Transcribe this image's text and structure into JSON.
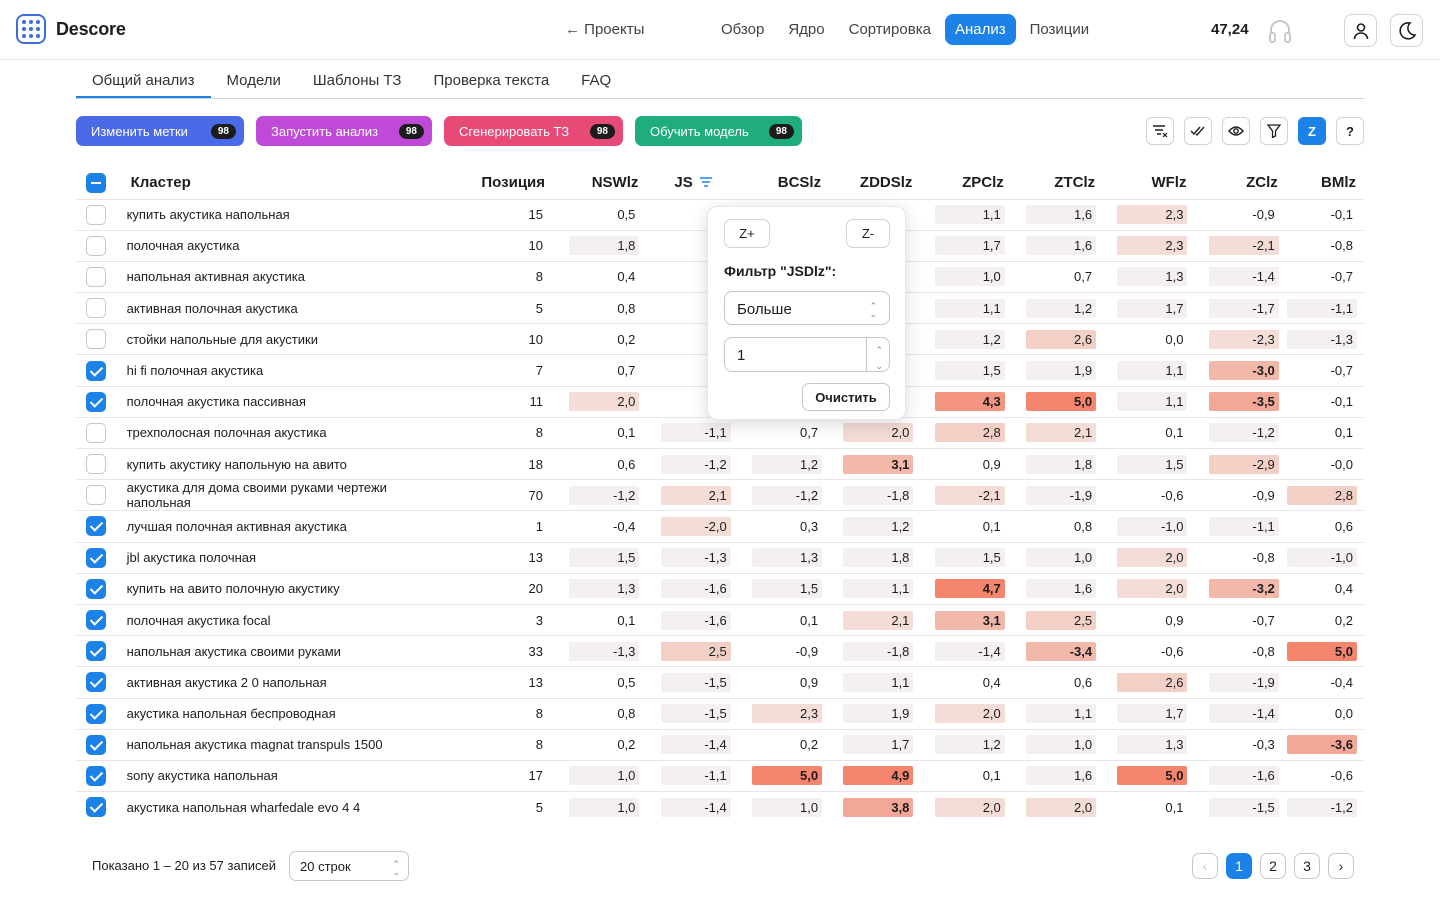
{
  "app": {
    "name": "Descore"
  },
  "header": {
    "back_label": "← Проекты",
    "nav": [
      "Обзор",
      "Ядро",
      "Сортировка",
      "Анализ",
      "Позиции"
    ],
    "active_nav": "Анализ",
    "score": "47,24"
  },
  "subtabs": [
    "Общий анализ",
    "Модели",
    "Шаблоны ТЗ",
    "Проверка текста",
    "FAQ"
  ],
  "actions": [
    {
      "label": "Изменить метки",
      "count": "98",
      "color": "#4a6ae8"
    },
    {
      "label": "Запустить анализ",
      "count": "98",
      "color": "#c04ad8"
    },
    {
      "label": "Сгенерировать ТЗ",
      "count": "98",
      "color": "#e84a78"
    },
    {
      "label": "Обучить модель",
      "count": "98",
      "color": "#1fad7e"
    }
  ],
  "toolbar_icons": [
    "clear-filter-icon",
    "check-all-icon",
    "eye-icon",
    "filter-icon",
    "z-toggle",
    "help-icon"
  ],
  "z_label": "Z",
  "help_label": "?",
  "table": {
    "headers": [
      "Кластер",
      "Позиция",
      "NSWlz",
      "JS",
      "BCSlz",
      "ZDDSlz",
      "ZPClz",
      "ZTClz",
      "WFlz",
      "ZClz",
      "BMlz"
    ],
    "rows": [
      {
        "checked": false,
        "kw": "купить акустика напольная",
        "pos": "15",
        "vals": [
          "0,5",
          "-",
          "",
          "",
          "1,1",
          "1,6",
          "2,3",
          "-0,9",
          "-0,1"
        ]
      },
      {
        "checked": false,
        "kw": "полочная акустика",
        "pos": "10",
        "vals": [
          "1,8",
          "-",
          "",
          "",
          "1,7",
          "1,6",
          "2,3",
          "-2,1",
          "-0,8"
        ]
      },
      {
        "checked": false,
        "kw": "напольная активная акустика",
        "pos": "8",
        "vals": [
          "0,4",
          "-",
          "",
          "",
          "1,0",
          "0,7",
          "1,3",
          "-1,4",
          "-0,7"
        ]
      },
      {
        "checked": false,
        "kw": "активная полочная акустика",
        "pos": "5",
        "vals": [
          "0,8",
          "-",
          "",
          "",
          "1,1",
          "1,2",
          "1,7",
          "-1,7",
          "-1,1"
        ]
      },
      {
        "checked": false,
        "kw": "стойки напольные для акустики",
        "pos": "10",
        "vals": [
          "0,2",
          "-",
          "",
          "",
          "1,2",
          "2,6",
          "0,0",
          "-2,3",
          "-1,3"
        ]
      },
      {
        "checked": true,
        "kw": "hi fi полочная акустика",
        "pos": "7",
        "vals": [
          "0,7",
          "-",
          "",
          "",
          "1,5",
          "1,9",
          "1,1",
          "-3,0",
          "-0,7"
        ]
      },
      {
        "checked": true,
        "kw": "полочная акустика пассивная",
        "pos": "11",
        "vals": [
          "2,0",
          "-",
          "",
          "",
          "4,3",
          "5,0",
          "1,1",
          "-3,5",
          "-0,1"
        ]
      },
      {
        "checked": false,
        "kw": "трехполосная полочная акустика",
        "pos": "8",
        "vals": [
          "0,1",
          "-1,1",
          "0,7",
          "2,0",
          "2,8",
          "2,1",
          "0,1",
          "-1,2",
          "0,1"
        ]
      },
      {
        "checked": false,
        "kw": "купить акустику напольную на авито",
        "pos": "18",
        "vals": [
          "0,6",
          "-1,2",
          "1,2",
          "3,1",
          "0,9",
          "1,8",
          "1,5",
          "-2,9",
          "-0,0"
        ]
      },
      {
        "checked": false,
        "kw": "акустика для дома своими руками чертежи напольная",
        "pos": "70",
        "vals": [
          "-1,2",
          "2,1",
          "-1,2",
          "-1,8",
          "-2,1",
          "-1,9",
          "-0,6",
          "-0,9",
          "2,8"
        ]
      },
      {
        "checked": true,
        "kw": "лучшая полочная активная акустика",
        "pos": "1",
        "vals": [
          "-0,4",
          "-2,0",
          "0,3",
          "1,2",
          "0,1",
          "0,8",
          "-1,0",
          "-1,1",
          "0,6"
        ]
      },
      {
        "checked": true,
        "kw": "jbl акустика полочная",
        "pos": "13",
        "vals": [
          "1,5",
          "-1,3",
          "1,3",
          "1,8",
          "1,5",
          "1,0",
          "2,0",
          "-0,8",
          "-1,0"
        ]
      },
      {
        "checked": true,
        "kw": "купить на авито полочную акустику",
        "pos": "20",
        "vals": [
          "1,3",
          "-1,6",
          "1,5",
          "1,1",
          "4,7",
          "1,6",
          "2,0",
          "-3,2",
          "0,4"
        ]
      },
      {
        "checked": true,
        "kw": "полочная акустика focal",
        "pos": "3",
        "vals": [
          "0,1",
          "-1,6",
          "0,1",
          "2,1",
          "3,1",
          "2,5",
          "0,9",
          "-0,7",
          "0,2"
        ]
      },
      {
        "checked": true,
        "kw": "напольная акустика своими руками",
        "pos": "33",
        "vals": [
          "-1,3",
          "2,5",
          "-0,9",
          "-1,8",
          "-1,4",
          "-3,4",
          "-0,6",
          "-0,8",
          "5,0"
        ]
      },
      {
        "checked": true,
        "kw": "активная акустика 2 0 напольная",
        "pos": "13",
        "vals": [
          "0,5",
          "-1,5",
          "0,9",
          "1,1",
          "0,4",
          "0,6",
          "2,6",
          "-1,9",
          "-0,4"
        ]
      },
      {
        "checked": true,
        "kw": "акустика напольная беспроводная",
        "pos": "8",
        "vals": [
          "0,8",
          "-1,5",
          "2,3",
          "1,9",
          "2,0",
          "1,1",
          "1,7",
          "-1,4",
          "0,0"
        ]
      },
      {
        "checked": true,
        "kw": "напольная акустика magnat transpuls 1500",
        "pos": "8",
        "vals": [
          "0,2",
          "-1,4",
          "0,2",
          "1,7",
          "1,2",
          "1,0",
          "1,3",
          "-0,3",
          "-3,6"
        ]
      },
      {
        "checked": true,
        "kw": "sony акустика напольная",
        "pos": "17",
        "vals": [
          "1,0",
          "-1,1",
          "5,0",
          "4,9",
          "0,1",
          "1,6",
          "5,0",
          "-1,6",
          "-0,6"
        ]
      },
      {
        "checked": true,
        "kw": "акустика напольная wharfedale evo 4 4",
        "pos": "5",
        "vals": [
          "1,0",
          "-1,4",
          "1,0",
          "3,8",
          "2,0",
          "2,0",
          "0,1",
          "-1,5",
          "-1,2"
        ]
      }
    ]
  },
  "popover": {
    "zplus": "Z+",
    "zminus": "Z-",
    "title": "Фильтр \"JSDlz\":",
    "select_value": "Больше",
    "number_value": "1",
    "clear_label": "Очистить"
  },
  "footer": {
    "summary": "Показано 1 – 20 из 57 записей",
    "rows_select": "20 строк",
    "pages": [
      "1",
      "2",
      "3"
    ],
    "active_page": "1",
    "prev": "‹",
    "next": "›"
  }
}
